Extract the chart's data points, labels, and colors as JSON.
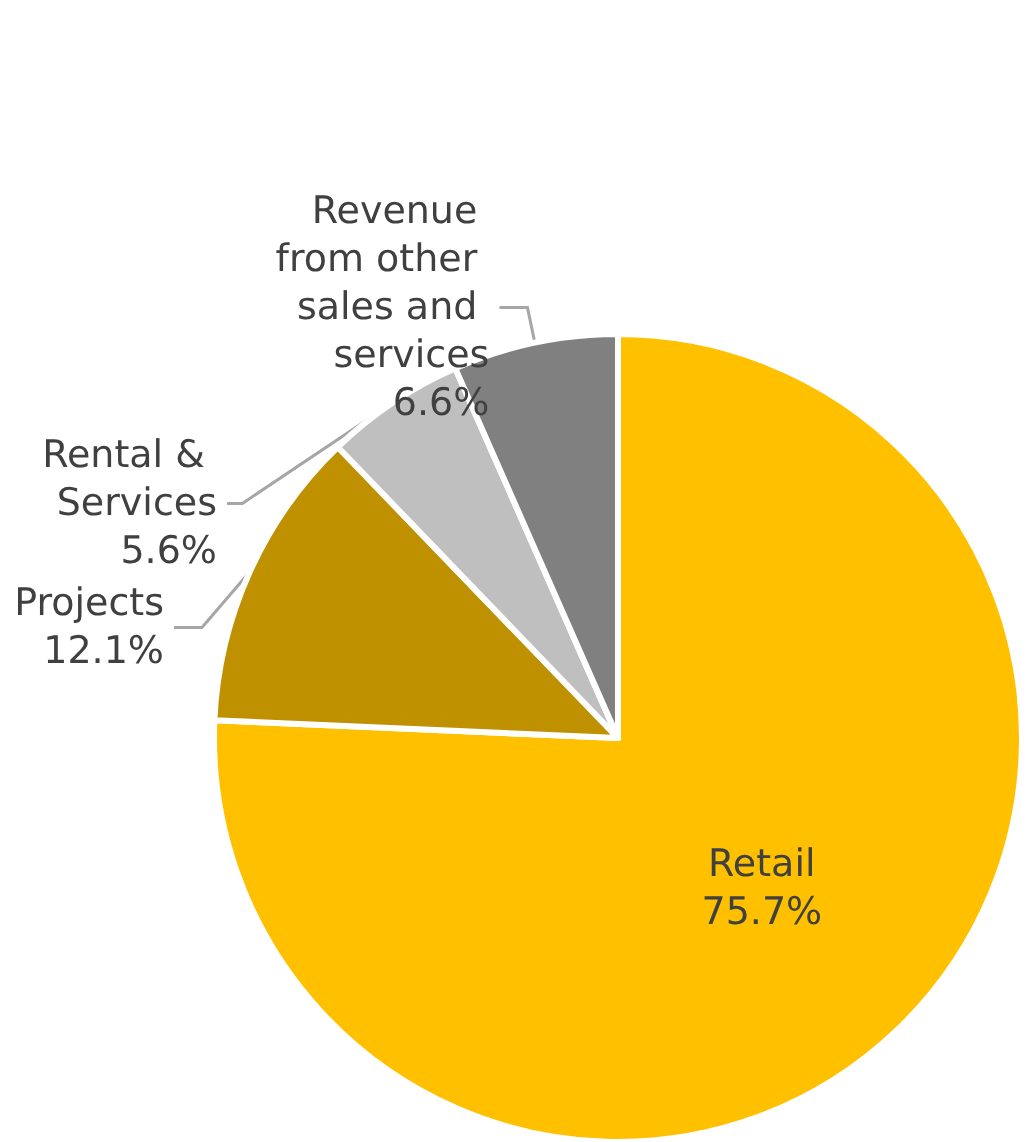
{
  "chart_data": {
    "type": "pie",
    "categories": [
      "Retail",
      "Projects",
      "Rental & Services",
      "Revenue from other sales and services"
    ],
    "values": [
      75.7,
      12.1,
      5.6,
      6.6
    ],
    "colors": [
      "#ffc000",
      "#bf9000",
      "#bfbfbf",
      "#808080"
    ],
    "value_labels": [
      "75.7%",
      "12.1%",
      "5.6%",
      "6.6%"
    ],
    "legend": false
  }
}
